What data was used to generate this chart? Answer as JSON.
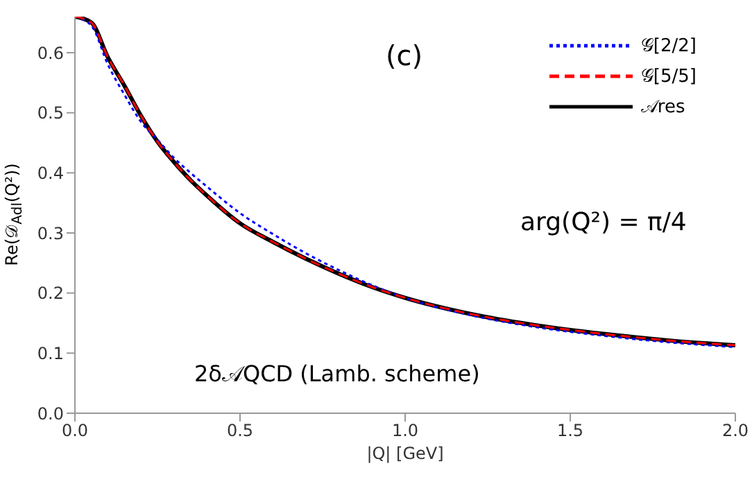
{
  "chart_data": {
    "type": "line",
    "xlabel": "|Q| [GeV]",
    "ylabel": "Re(𝒟$_{Adl}$(Q²))",
    "x": [
      0,
      0.05,
      0.1,
      0.15,
      0.2,
      0.25,
      0.3,
      0.35,
      0.4,
      0.5,
      0.6,
      0.7,
      0.8,
      0.9,
      1.0,
      1.2,
      1.4,
      1.6,
      1.8,
      2.0
    ],
    "series": [
      {
        "name": "𝒢[2/2]",
        "color": "#0000ff",
        "line_style": "dotted",
        "values": [
          0.66,
          0.645,
          0.58,
          0.53,
          0.485,
          0.455,
          0.425,
          0.4,
          0.377,
          0.333,
          0.298,
          0.266,
          0.238,
          0.213,
          0.192,
          0.163,
          0.143,
          0.129,
          0.118,
          0.11
        ]
      },
      {
        "name": "𝒢[5/5]",
        "color": "#ff0000",
        "line_style": "dashed",
        "values": [
          0.66,
          0.65,
          0.592,
          0.545,
          0.495,
          0.452,
          0.418,
          0.388,
          0.362,
          0.316,
          0.285,
          0.257,
          0.232,
          0.21,
          0.192,
          0.165,
          0.146,
          0.132,
          0.121,
          0.113
        ]
      },
      {
        "name": "𝒜res",
        "color": "#000000",
        "line_style": "solid",
        "values": [
          0.66,
          0.65,
          0.592,
          0.545,
          0.495,
          0.452,
          0.418,
          0.388,
          0.362,
          0.316,
          0.285,
          0.257,
          0.232,
          0.21,
          0.192,
          0.165,
          0.146,
          0.132,
          0.121,
          0.113
        ]
      }
    ],
    "xlim": [
      0,
      2
    ],
    "ylim": [
      0,
      0.66
    ],
    "xticks": [
      {
        "value": 0,
        "label": "0.0"
      },
      {
        "value": 0.5,
        "label": "0.5"
      },
      {
        "value": 1,
        "label": "1.0"
      },
      {
        "value": 1.5,
        "label": "1.5"
      },
      {
        "value": 2,
        "label": "2.0"
      }
    ],
    "yticks": [
      {
        "value": 0,
        "label": "0.0"
      },
      {
        "value": 0.1,
        "label": "0.1"
      },
      {
        "value": 0.2,
        "label": "0.2"
      },
      {
        "value": 0.3,
        "label": "0.3"
      },
      {
        "value": 0.4,
        "label": "0.4"
      },
      {
        "value": 0.5,
        "label": "0.5"
      },
      {
        "value": 0.6,
        "label": "0.6"
      }
    ],
    "annotations": [
      "(c)",
      "arg(Q²) = π/4",
      "2δ𝒜QCD  (Lamb. scheme)"
    ],
    "legend": "top right",
    "marker": "none",
    "grid": false
  }
}
